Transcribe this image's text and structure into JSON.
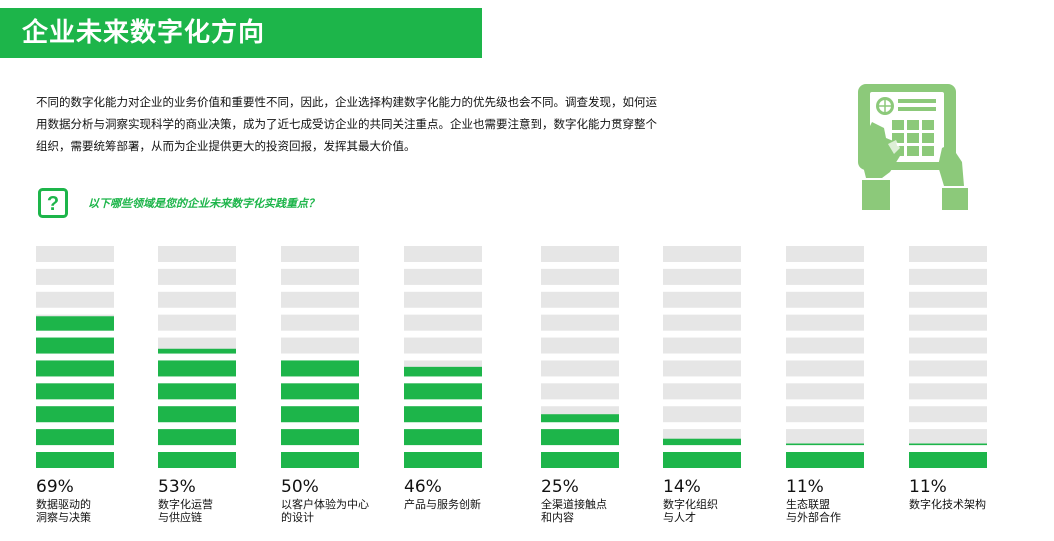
{
  "title": "企业未来数字化方向",
  "intro": "不同的数字化能力对企业的业务价值和重要性不同，因此，企业选择构建数字化能力的优先级也会不同。调查发现，如何运用数据分析与洞察实现科学的商业决策，成为了近七成受访企业的共同关注重点。企业也需要注意到，数字化能力贯穿整个组织，需要统筹部署，从而为企业提供更大的投资回报，发挥其最大价值。",
  "question": "以下哪些领域是您的企业未来数字化实践重点？",
  "icons": {
    "question": "question-mark-icon",
    "illustration": "tablet-hands-icon"
  },
  "colors": {
    "accent": "#1db54a",
    "bar_empty": "#e6e6e6",
    "illustration": "#8cc97a"
  },
  "chart_data": {
    "type": "bar",
    "orientation": "vertical-segmented",
    "unit": "%",
    "segments_per_bar": 10,
    "categories": [
      "数据驱动的\n洞察与决策",
      "数字化运营\n与供应链",
      "以客户体验为中心\n的设计",
      "产品与服务创新",
      "全渠道接触点\n和内容",
      "数字化组织\n与人才",
      "生态联盟\n与外部合作",
      "数字化技术架构"
    ],
    "values": [
      69,
      53,
      50,
      46,
      25,
      14,
      11,
      11
    ],
    "labels": [
      "69%",
      "53%",
      "50%",
      "46%",
      "25%",
      "14%",
      "11%",
      "11%"
    ],
    "ylim": [
      0,
      100
    ]
  }
}
